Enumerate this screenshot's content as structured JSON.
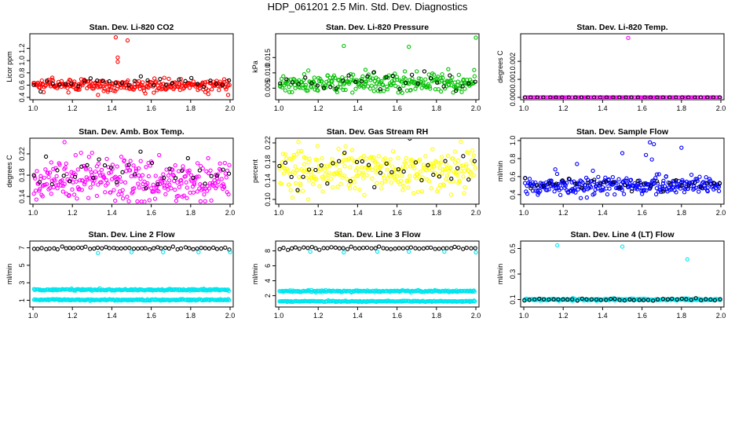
{
  "page": {
    "title": "HDP_061201  2.5 Min. Std. Dev. Diagnostics"
  },
  "colors": {
    "black": "#000000",
    "red": "#ff0000",
    "green": "#00c000",
    "magenta": "#ff00ff",
    "yellow": "#ffff00",
    "blue": "#0000ff",
    "cyan": "#00e5ee"
  },
  "chart_data": [
    {
      "id": "co2",
      "type": "scatter",
      "title": "Stan. Dev. Li-820 CO2",
      "ylabel": "Licor ppm",
      "xlim": [
        1.0,
        2.0
      ],
      "ylim": [
        0.4,
        1.4
      ],
      "xticks": [
        1.0,
        1.2,
        1.4,
        1.6,
        1.8,
        2.0
      ],
      "yticks": [
        0.4,
        0.6,
        0.8,
        1.0,
        1.2
      ],
      "ytick_labels": [
        "0.4",
        "0.6",
        "0.8",
        "1.0",
        "1.2"
      ],
      "series": [
        {
          "name": "band",
          "color": "red",
          "n": 260,
          "mean": 0.6,
          "spread": 0.05,
          "seed": 11
        },
        {
          "name": "summary",
          "color": "black",
          "n": 32,
          "mean": 0.62,
          "spread": 0.05,
          "seed": 12
        }
      ],
      "outliers": [
        {
          "color": "red",
          "points": [
            [
              1.42,
              1.38
            ],
            [
              1.48,
              1.33
            ],
            [
              1.43,
              1.05
            ],
            [
              1.43,
              0.98
            ],
            [
              1.33,
              0.44
            ],
            [
              1.99,
              0.44
            ],
            [
              1.18,
              0.48
            ]
          ]
        }
      ]
    },
    {
      "id": "pressure",
      "type": "scatter",
      "title": "Stan. Dev. Li-820 Pressure",
      "ylabel": "kPa",
      "xlim": [
        1.0,
        2.0
      ],
      "ylim": [
        0.002,
        0.022
      ],
      "xticks": [
        1.0,
        1.2,
        1.4,
        1.6,
        1.8,
        2.0
      ],
      "yticks": [
        0.005,
        0.01,
        0.015
      ],
      "ytick_labels": [
        "0.005",
        "0.010",
        "0.015"
      ],
      "series": [
        {
          "name": "band",
          "color": "green",
          "n": 260,
          "mean": 0.0068,
          "spread": 0.0016,
          "seed": 21
        },
        {
          "name": "summary",
          "color": "black",
          "n": 32,
          "mean": 0.007,
          "spread": 0.0014,
          "seed": 22
        }
      ],
      "outliers": [
        {
          "color": "green",
          "points": [
            [
              1.33,
              0.0188
            ],
            [
              1.66,
              0.0185
            ],
            [
              2.0,
              0.0215
            ],
            [
              1.44,
              0.011
            ],
            [
              1.86,
              0.0112
            ],
            [
              1.7,
              0.0105
            ]
          ]
        }
      ]
    },
    {
      "id": "temp",
      "type": "scatter",
      "title": "Stan. Dev. Li-820 Temp.",
      "ylabel": "degrees C",
      "xlim": [
        1.0,
        2.0
      ],
      "ylim": [
        0.0,
        0.0034
      ],
      "xticks": [
        1.0,
        1.2,
        1.4,
        1.6,
        1.8,
        2.0
      ],
      "yticks": [
        0.0,
        0.001,
        0.002
      ],
      "ytick_labels": [
        "0.000",
        "0.001",
        "0.002"
      ],
      "series": [
        {
          "name": "band",
          "color": "magenta",
          "n": 130,
          "mean": 0.0,
          "spread": 0.0,
          "seed": 31
        },
        {
          "name": "summary",
          "color": "black",
          "n": 32,
          "mean": 0.0,
          "spread": 0.0,
          "seed": 32
        }
      ],
      "outliers": [
        {
          "color": "magenta",
          "points": [
            [
              1.53,
              0.0033
            ]
          ]
        }
      ]
    },
    {
      "id": "ambbox",
      "type": "scatter",
      "title": "Stan. Dev. Amb. Box Temp.",
      "ylabel": "degrees C",
      "xlim": [
        1.0,
        2.0
      ],
      "ylim": [
        0.13,
        0.245
      ],
      "xticks": [
        1.0,
        1.2,
        1.4,
        1.6,
        1.8,
        2.0
      ],
      "yticks": [
        0.14,
        0.18,
        0.22
      ],
      "ytick_labels": [
        "0.14",
        "0.18",
        "0.22"
      ],
      "series": [
        {
          "name": "band",
          "color": "magenta",
          "n": 300,
          "mean": 0.17,
          "spread": 0.02,
          "seed": 41
        },
        {
          "name": "summary",
          "color": "black",
          "n": 34,
          "mean": 0.18,
          "spread": 0.015,
          "seed": 42
        }
      ],
      "outliers": [
        {
          "color": "magenta",
          "points": [
            [
              1.16,
              0.242
            ],
            [
              1.3,
              0.222
            ]
          ]
        }
      ]
    },
    {
      "id": "rh",
      "type": "scatter",
      "title": "Stan. Dev. Gas Stream RH",
      "ylabel": "percent",
      "xlim": [
        1.0,
        2.0
      ],
      "ylim": [
        0.095,
        0.225
      ],
      "xticks": [
        1.0,
        1.2,
        1.4,
        1.6,
        1.8,
        2.0
      ],
      "yticks": [
        0.1,
        0.14,
        0.18,
        0.22
      ],
      "ytick_labels": [
        "0.10",
        "0.14",
        "0.18",
        "0.22"
      ],
      "series": [
        {
          "name": "band",
          "color": "yellow",
          "n": 300,
          "mean": 0.16,
          "spread": 0.022,
          "seed": 51
        },
        {
          "name": "summary",
          "color": "black",
          "n": 34,
          "mean": 0.165,
          "spread": 0.02,
          "seed": 52
        }
      ],
      "outliers": [
        {
          "color": "yellow",
          "points": [
            [
              1.15,
              0.1
            ],
            [
              1.1,
              0.222
            ]
          ]
        }
      ]
    },
    {
      "id": "sample",
      "type": "scatter",
      "title": "Stan. Dev. Sample Flow",
      "ylabel": "ml/min",
      "xlim": [
        1.0,
        2.0
      ],
      "ylim": [
        0.32,
        1.0
      ],
      "xticks": [
        1.0,
        1.2,
        1.4,
        1.6,
        1.8,
        2.0
      ],
      "yticks": [
        0.4,
        0.6,
        0.8,
        1.0
      ],
      "ytick_labels": [
        "0.4",
        "0.6",
        "0.8",
        "1.0"
      ],
      "series": [
        {
          "name": "band",
          "color": "blue",
          "n": 300,
          "mean": 0.5,
          "spread": 0.05,
          "seed": 61
        },
        {
          "name": "summary",
          "color": "black",
          "n": 32,
          "mean": 0.52,
          "spread": 0.04,
          "seed": 62
        }
      ],
      "outliers": [
        {
          "color": "blue",
          "points": [
            [
              1.64,
              0.98
            ],
            [
              1.66,
              0.96
            ],
            [
              1.62,
              0.84
            ],
            [
              1.65,
              0.79
            ],
            [
              1.8,
              0.92
            ],
            [
              1.5,
              0.86
            ],
            [
              1.27,
              0.74
            ],
            [
              1.16,
              0.68
            ]
          ]
        }
      ]
    },
    {
      "id": "line2",
      "type": "scatter",
      "title": "Stan. Dev. Line 2 Flow",
      "ylabel": "ml/min",
      "xlim": [
        1.0,
        2.0
      ],
      "ylim": [
        0.5,
        7.5
      ],
      "xticks": [
        1.0,
        1.2,
        1.4,
        1.6,
        1.8,
        2.0
      ],
      "yticks": [
        1,
        3,
        5,
        7
      ],
      "ytick_labels": [
        "1",
        "3",
        "5",
        "7"
      ],
      "series": [
        {
          "name": "upper",
          "color": "cyan",
          "n": 220,
          "mean": 2.2,
          "spread": 0.05,
          "seed": 71
        },
        {
          "name": "lower",
          "color": "cyan",
          "n": 220,
          "mean": 1.05,
          "spread": 0.04,
          "seed": 72
        },
        {
          "name": "top",
          "color": "black",
          "n": 50,
          "mean": 6.95,
          "spread": 0.07,
          "seed": 73
        }
      ],
      "outliers": [
        {
          "color": "cyan",
          "points": [
            [
              1.33,
              6.4
            ],
            [
              1.5,
              6.5
            ],
            [
              1.66,
              6.5
            ],
            [
              1.84,
              6.5
            ],
            [
              2.0,
              6.5
            ]
          ]
        }
      ]
    },
    {
      "id": "line3",
      "type": "scatter",
      "title": "Stan. Dev. Line 3 Flow",
      "ylabel": "ml/min",
      "xlim": [
        1.0,
        2.0
      ],
      "ylim": [
        0.8,
        9.0
      ],
      "xticks": [
        1.0,
        1.2,
        1.4,
        1.6,
        1.8,
        2.0
      ],
      "yticks": [
        2,
        4,
        6,
        8
      ],
      "ytick_labels": [
        "2",
        "4",
        "6",
        "8"
      ],
      "series": [
        {
          "name": "upper",
          "color": "cyan",
          "n": 220,
          "mean": 2.6,
          "spread": 0.06,
          "seed": 81
        },
        {
          "name": "lower",
          "color": "cyan",
          "n": 220,
          "mean": 1.25,
          "spread": 0.04,
          "seed": 82
        },
        {
          "name": "top",
          "color": "black",
          "n": 50,
          "mean": 8.35,
          "spread": 0.08,
          "seed": 83
        }
      ],
      "outliers": [
        {
          "color": "cyan",
          "points": [
            [
              1.16,
              7.9
            ],
            [
              1.33,
              7.8
            ],
            [
              1.5,
              7.9
            ],
            [
              1.66,
              7.9
            ],
            [
              1.84,
              7.9
            ],
            [
              2.0,
              7.8
            ]
          ]
        }
      ]
    },
    {
      "id": "line4",
      "type": "scatter",
      "title": "Stan. Dev. Line 4 (LT) Flow",
      "ylabel": "ml/min",
      "xlim": [
        1.0,
        2.0
      ],
      "ylim": [
        0.06,
        0.54
      ],
      "xticks": [
        1.0,
        1.2,
        1.4,
        1.6,
        1.8,
        2.0
      ],
      "yticks": [
        0.1,
        0.3,
        0.5
      ],
      "ytick_labels": [
        "0.1",
        "0.3",
        "0.5"
      ],
      "series": [
        {
          "name": "band",
          "color": "cyan",
          "n": 260,
          "mean": 0.1,
          "spread": 0.004,
          "seed": 91
        },
        {
          "name": "summary",
          "color": "black",
          "n": 42,
          "mean": 0.1,
          "spread": 0.004,
          "seed": 92
        }
      ],
      "outliers": [
        {
          "color": "cyan",
          "points": [
            [
              1.17,
              0.525
            ],
            [
              1.5,
              0.515
            ],
            [
              1.83,
              0.415
            ]
          ]
        }
      ]
    }
  ]
}
